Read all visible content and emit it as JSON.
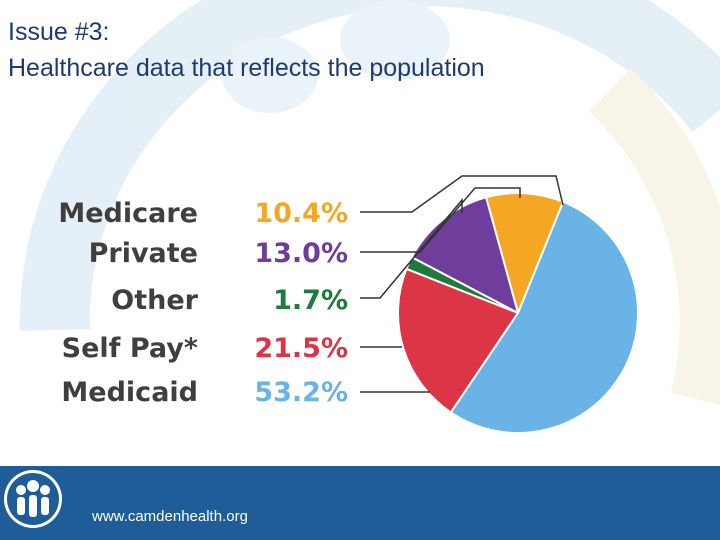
{
  "slide": {
    "title_line1": "Issue #3:",
    "title_line2": "Healthcare data that reflects the population",
    "footer_url": "www.camdenhealth.org"
  },
  "colors": {
    "title": "#1f3a73",
    "footer": "#1f5d99",
    "label": "#3f3f3f"
  },
  "chart_data": {
    "type": "pie",
    "title": "",
    "categories": [
      "Medicare",
      "Private",
      "Other",
      "Self Pay*",
      "Medicaid"
    ],
    "values": [
      10.4,
      13.0,
      1.7,
      21.5,
      53.2
    ],
    "labels": [
      "10.4%",
      "13.0%",
      "1.7%",
      "21.5%",
      "53.2%"
    ],
    "colors": [
      "#f5a623",
      "#6f3d9b",
      "#1f7a3d",
      "#dc3545",
      "#69b3e7"
    ]
  }
}
